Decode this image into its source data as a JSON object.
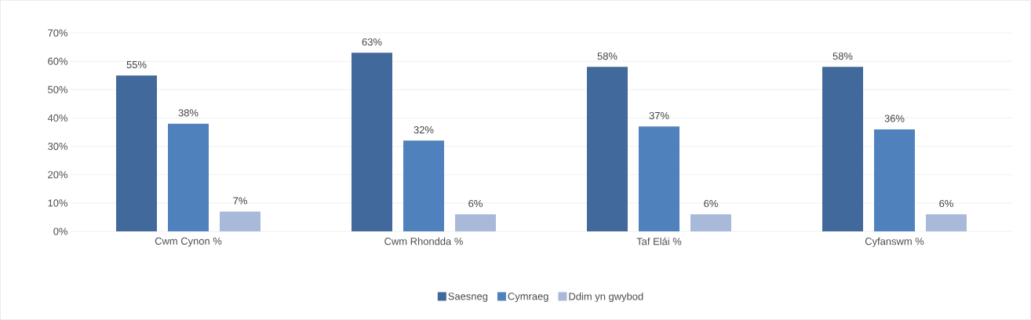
{
  "chart_data": {
    "type": "bar",
    "categories": [
      "Cwm Cynon %",
      "Cwm Rhondda %",
      "Taf Elái %",
      "Cyfanswm %"
    ],
    "series": [
      {
        "name": "Saesneg",
        "color": "#41699b",
        "values": [
          55,
          63,
          58,
          58
        ],
        "value_labels": [
          "55%",
          "63%",
          "58%",
          "58%"
        ]
      },
      {
        "name": "Cymraeg",
        "color": "#4f81bd",
        "values": [
          38,
          32,
          37,
          36
        ],
        "value_labels": [
          "38%",
          "32%",
          "37%",
          "36%"
        ]
      },
      {
        "name": "Ddim yn gwybod",
        "color": "#a9b9d9",
        "values": [
          7,
          6,
          6,
          6
        ],
        "value_labels": [
          "7%",
          "6%",
          "6%",
          "6%"
        ]
      }
    ],
    "ylim": [
      0,
      70
    ],
    "yticks": [
      {
        "value": 0,
        "label": "0%"
      },
      {
        "value": 10,
        "label": "10%"
      },
      {
        "value": 20,
        "label": "20%"
      },
      {
        "value": 30,
        "label": "30%"
      },
      {
        "value": 40,
        "label": "40%"
      },
      {
        "value": 50,
        "label": "50%"
      },
      {
        "value": 60,
        "label": "60%"
      },
      {
        "value": 70,
        "label": "70%"
      }
    ],
    "grid": "y",
    "legend": "bottom"
  }
}
